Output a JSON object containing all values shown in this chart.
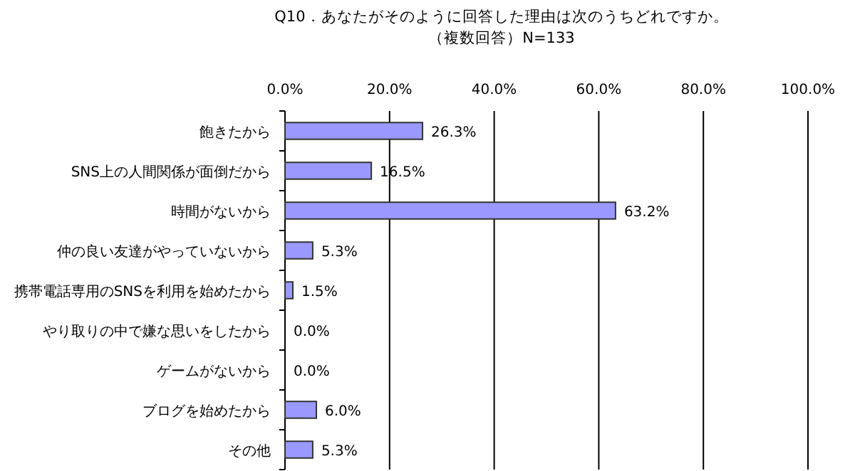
{
  "chart_data": {
    "type": "bar",
    "orientation": "horizontal",
    "title": "Q10．あなたがそのように回答した理由は次のうちどれですか。",
    "subtitle": "（複数回答）N=133",
    "categories": [
      "飽きたから",
      "SNS上の人間関係が面倒だから",
      "時間がないから",
      "仲の良い友達がやっていないから",
      "携帯電話専用のSNSを利用を始めたから",
      "やり取りの中で嫌な思いをしたから",
      "ゲームがないから",
      "ブログを始めたから",
      "その他"
    ],
    "values": [
      26.3,
      16.5,
      63.2,
      5.3,
      1.5,
      0.0,
      0.0,
      6.0,
      5.3
    ],
    "value_labels": [
      "26.3%",
      "16.5%",
      "63.2%",
      "5.3%",
      "1.5%",
      "0.0%",
      "0.0%",
      "6.0%",
      "5.3%"
    ],
    "color": "#9999ff",
    "xlim": [
      0,
      100
    ],
    "xticks": [
      {
        "value": 0,
        "label": "0.0%"
      },
      {
        "value": 20,
        "label": "20.0%"
      },
      {
        "value": 40,
        "label": "40.0%"
      },
      {
        "value": 60,
        "label": "60.0%"
      },
      {
        "value": 80,
        "label": "80.0%"
      },
      {
        "value": 100,
        "label": "100.0%"
      }
    ],
    "grid": "x"
  }
}
